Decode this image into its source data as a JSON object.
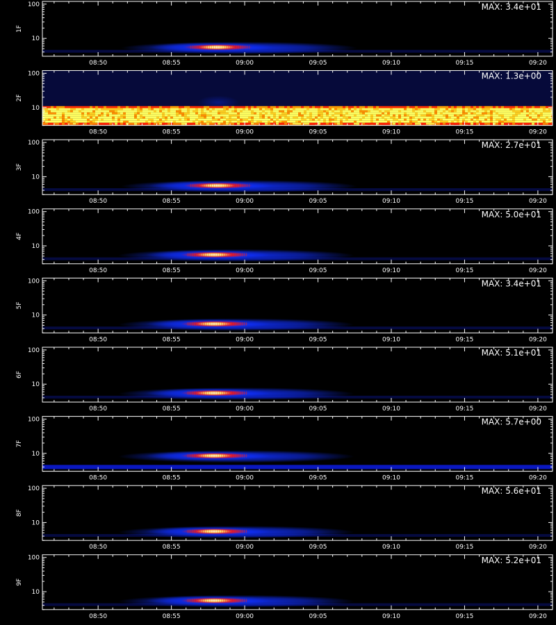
{
  "chart_data": {
    "type": "heatmap",
    "x_tick_labels": [
      "08:50",
      "08:55",
      "09:00",
      "09:05",
      "09:10",
      "09:15",
      "09:20"
    ],
    "x_tick_minutes": [
      530,
      535,
      540,
      545,
      550,
      555,
      560
    ],
    "x_range_minutes": [
      526.2,
      561.0
    ],
    "y_scale": "log",
    "y_range": [
      3,
      120
    ],
    "y_tick_values": [
      10,
      100
    ],
    "y_tick_labels": [
      "10",
      "100"
    ],
    "xlabel": "",
    "colors": {
      "background": "#000000",
      "axes": "#ffffff",
      "low": "#1030ff",
      "mid": "#ff1010",
      "high": "#ffff80"
    },
    "panels": [
      {
        "label": "1F",
        "max_text": "MAX: 3.4e+01",
        "peak_minute": 538.2,
        "pattern": "burst"
      },
      {
        "label": "2F",
        "max_text": "MAX: 1.3e+00",
        "peak_minute": 538.2,
        "pattern": "noise-band"
      },
      {
        "label": "3F",
        "max_text": "MAX: 2.7e+01",
        "peak_minute": 538.2,
        "pattern": "burst"
      },
      {
        "label": "4F",
        "max_text": "MAX: 5.0e+01",
        "peak_minute": 538.0,
        "pattern": "burst"
      },
      {
        "label": "5F",
        "max_text": "MAX: 3.4e+01",
        "peak_minute": 538.0,
        "pattern": "burst"
      },
      {
        "label": "6F",
        "max_text": "MAX: 5.1e+01",
        "peak_minute": 538.0,
        "pattern": "burst"
      },
      {
        "label": "7F",
        "max_text": "MAX: 5.7e+00",
        "peak_minute": 538.0,
        "pattern": "burst-high"
      },
      {
        "label": "8F",
        "max_text": "MAX: 5.6e+01",
        "peak_minute": 538.0,
        "pattern": "burst"
      },
      {
        "label": "9F",
        "max_text": "MAX: 5.2e+01",
        "peak_minute": 538.0,
        "pattern": "burst"
      }
    ]
  }
}
